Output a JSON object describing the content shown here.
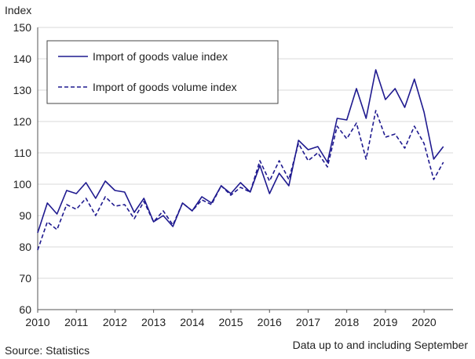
{
  "chart_data": {
    "type": "line",
    "ylabel": "Index",
    "xlabel": "",
    "ylim": [
      60,
      150
    ],
    "yticks": [
      60,
      70,
      80,
      90,
      100,
      110,
      120,
      130,
      140,
      150
    ],
    "xlim": [
      2010,
      2020.75
    ],
    "xticks": [
      2010,
      2011,
      2012,
      2013,
      2014,
      2015,
      2016,
      2017,
      2018,
      2019,
      2020
    ],
    "grid": true,
    "legend_placement": "top-left",
    "colors": {
      "line": "#1f1a8f",
      "axis": "#555555",
      "grid": "#d9d9d9"
    },
    "series": [
      {
        "name": "Import of goods value index",
        "style": "solid",
        "x": [
          2010.0,
          2010.25,
          2010.5,
          2010.75,
          2011.0,
          2011.25,
          2011.5,
          2011.75,
          2012.0,
          2012.25,
          2012.5,
          2012.75,
          2013.0,
          2013.25,
          2013.5,
          2013.75,
          2014.0,
          2014.25,
          2014.5,
          2014.75,
          2015.0,
          2015.25,
          2015.5,
          2015.75,
          2016.0,
          2016.25,
          2016.5,
          2016.75,
          2017.0,
          2017.25,
          2017.5,
          2017.75,
          2018.0,
          2018.25,
          2018.5,
          2018.75,
          2019.0,
          2019.25,
          2019.5,
          2019.75,
          2020.0,
          2020.25,
          2020.5
        ],
        "values": [
          84.5,
          94,
          90.5,
          98,
          97,
          100.5,
          95.5,
          101,
          98,
          97.5,
          91,
          95.5,
          88,
          90,
          86.5,
          94,
          91.5,
          96,
          94,
          99.5,
          97,
          100.5,
          97.5,
          106,
          97,
          103.5,
          99.5,
          114,
          111,
          112,
          107,
          121,
          120.5,
          130.5,
          121,
          136.5,
          127,
          130.5,
          124.5,
          133.5,
          123,
          108,
          112
        ]
      },
      {
        "name": "Import of goods volume index",
        "style": "dashed",
        "x": [
          2010.0,
          2010.25,
          2010.5,
          2010.75,
          2011.0,
          2011.25,
          2011.5,
          2011.75,
          2012.0,
          2012.25,
          2012.5,
          2012.75,
          2013.0,
          2013.25,
          2013.5,
          2013.75,
          2014.0,
          2014.25,
          2014.5,
          2014.75,
          2015.0,
          2015.25,
          2015.5,
          2015.75,
          2016.0,
          2016.25,
          2016.5,
          2016.75,
          2017.0,
          2017.25,
          2017.5,
          2017.75,
          2018.0,
          2018.25,
          2018.5,
          2018.75,
          2019.0,
          2019.25,
          2019.5,
          2019.75,
          2020.0,
          2020.25,
          2020.5
        ],
        "values": [
          79,
          88,
          85.5,
          93.5,
          92,
          95.5,
          90,
          96,
          93,
          93.5,
          89,
          94.5,
          88,
          91.5,
          87,
          94,
          91.5,
          95,
          93.5,
          99.5,
          96.5,
          99,
          97.5,
          107.5,
          101,
          107.5,
          101.5,
          113,
          107.5,
          110,
          105.5,
          118.5,
          114.5,
          119.5,
          108,
          123.5,
          115,
          116,
          111.5,
          118.5,
          113,
          101.5,
          107
        ]
      }
    ]
  },
  "notes": {
    "source": "Source: Statistics",
    "period": "Data up to and including September"
  }
}
